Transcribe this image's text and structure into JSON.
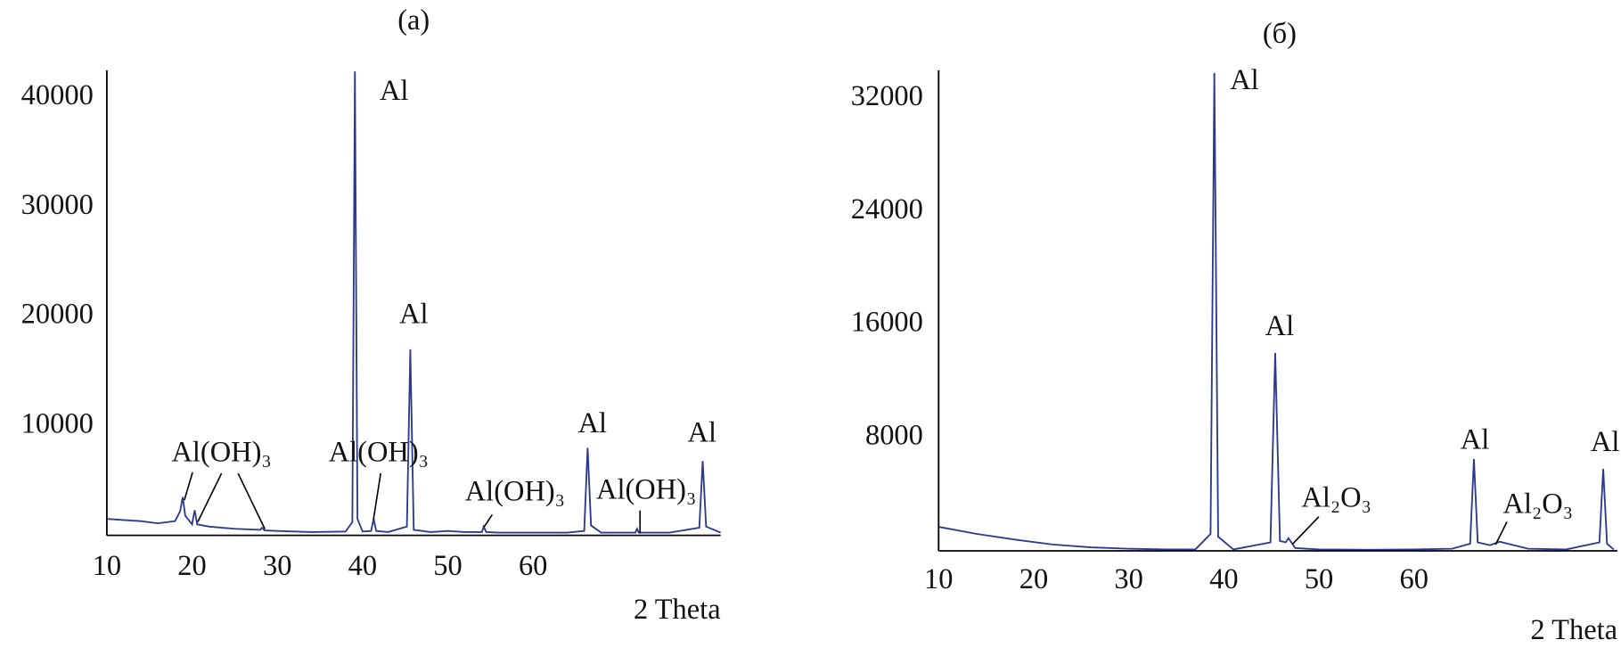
{
  "chart_data": [
    {
      "type": "line",
      "title": "(a)",
      "x_label": "2 Theta",
      "color": "#2b3a8f",
      "xlim": [
        10,
        82
      ],
      "xticks": [
        10,
        20,
        30,
        40,
        50,
        60
      ],
      "ylim": [
        0,
        42500
      ],
      "yticks": [
        10000,
        20000,
        30000,
        40000
      ],
      "annotations": [
        "Al",
        "Al",
        "Al(OH)₃",
        "Al(OH)₃",
        "Al(OH)₃",
        "Al",
        "Al(OH)₃",
        "Al"
      ],
      "x": [
        10,
        11,
        12,
        14,
        16,
        18,
        18.6,
        18.9,
        19.2,
        20,
        20.3,
        20.6,
        22,
        25,
        28,
        28.2,
        28.5,
        30,
        34,
        38,
        38.8,
        39.1,
        39.4,
        40,
        41,
        41.3,
        41.6,
        43,
        45.2,
        45.6,
        46,
        48,
        50,
        52,
        54,
        54.2,
        54.5,
        56,
        60,
        64,
        66,
        66.4,
        66.8,
        68,
        72,
        72.2,
        72.4,
        76,
        79.5,
        79.9,
        80.3,
        82
      ],
      "values": [
        1500,
        1450,
        1400,
        1300,
        1100,
        1300,
        2200,
        3500,
        1800,
        1000,
        2300,
        1000,
        800,
        600,
        500,
        700,
        450,
        400,
        300,
        350,
        1200,
        42400,
        1500,
        350,
        400,
        1500,
        400,
        300,
        800,
        17000,
        500,
        300,
        400,
        300,
        300,
        800,
        300,
        250,
        250,
        250,
        400,
        8000,
        900,
        250,
        250,
        600,
        250,
        250,
        700,
        6800,
        800,
        250
      ]
    },
    {
      "type": "line",
      "title": "(б)",
      "x_label": "2 Theta",
      "color": "#2b3a8f",
      "xlim": [
        10,
        81.4
      ],
      "xticks": [
        10,
        20,
        30,
        40,
        50,
        60
      ],
      "ylim": [
        0,
        34000
      ],
      "yticks": [
        8000,
        16000,
        24000,
        32000
      ],
      "annotations": [
        "Al",
        "Al",
        "Al₂O₃",
        "Al",
        "Al₂O₃",
        "Al"
      ],
      "x": [
        10,
        14,
        18,
        22,
        26,
        30,
        34,
        37,
        38.6,
        39,
        39.4,
        41,
        44.9,
        45.4,
        45.9,
        46.5,
        46.8,
        47.5,
        50,
        55,
        60,
        64,
        65.9,
        66.3,
        66.7,
        68,
        69,
        72,
        76,
        79.5,
        79.9,
        80.3,
        81
      ],
      "values": [
        1700,
        1200,
        800,
        450,
        250,
        150,
        100,
        100,
        1200,
        33800,
        1000,
        100,
        600,
        14000,
        700,
        600,
        900,
        200,
        100,
        80,
        100,
        150,
        500,
        6500,
        600,
        400,
        650,
        150,
        100,
        600,
        5800,
        500,
        100
      ]
    }
  ]
}
